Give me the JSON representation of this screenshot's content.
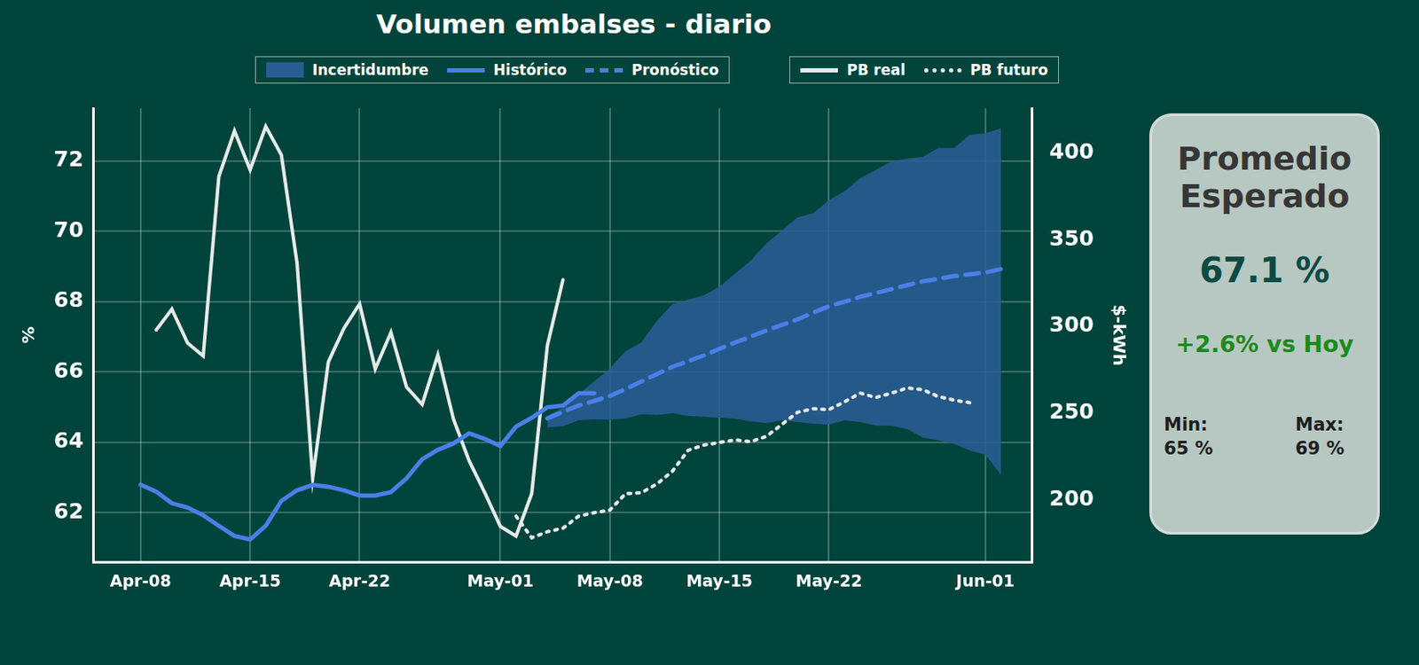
{
  "chart_data": {
    "type": "line",
    "title": "Volumen embalses - diario",
    "categories": [
      null,
      null,
      null,
      "Apr-08",
      null,
      null,
      null,
      null,
      null,
      null,
      "Apr-15",
      null,
      null,
      null,
      null,
      null,
      null,
      "Apr-22",
      null,
      null,
      null,
      null,
      null,
      null,
      null,
      null,
      "May-01",
      null,
      null,
      null,
      null,
      null,
      null,
      "May-08",
      null,
      null,
      null,
      null,
      null,
      null,
      "May-15",
      null,
      null,
      null,
      null,
      null,
      null,
      "May-22",
      null,
      null,
      null,
      null,
      null,
      null,
      null,
      null,
      null,
      "Jun-01",
      null,
      null,
      null
    ],
    "y_label": "%",
    "y2_label": "$-kWh",
    "ylim": [
      60.6,
      73.5
    ],
    "yticks": [
      62,
      64,
      66,
      68,
      70,
      72
    ],
    "y2lim": [
      164,
      426
    ],
    "y2ticks": [
      200,
      250,
      300,
      350,
      400
    ],
    "grid": true,
    "legend": "top",
    "series": [
      {
        "name": "Incertidumbre",
        "type": "band",
        "color": "#2a5c94",
        "axis": "y",
        "lower": [
          null,
          null,
          null,
          null,
          null,
          null,
          null,
          null,
          null,
          null,
          null,
          null,
          null,
          null,
          null,
          null,
          null,
          null,
          null,
          null,
          null,
          null,
          null,
          null,
          null,
          null,
          null,
          null,
          null,
          64.43,
          64.46,
          64.63,
          64.65,
          64.65,
          64.68,
          64.8,
          64.78,
          64.83,
          64.75,
          64.73,
          64.7,
          64.68,
          64.6,
          64.55,
          64.63,
          64.58,
          64.53,
          64.51,
          64.63,
          64.58,
          64.48,
          64.48,
          64.38,
          64.14,
          64.06,
          63.96,
          63.77,
          63.65,
          63.08,
          null,
          null
        ],
        "upper": [
          null,
          null,
          null,
          null,
          null,
          null,
          null,
          null,
          null,
          null,
          null,
          null,
          null,
          null,
          null,
          null,
          null,
          null,
          null,
          null,
          null,
          null,
          null,
          null,
          null,
          null,
          null,
          null,
          null,
          64.75,
          65.0,
          65.37,
          65.74,
          66.1,
          66.59,
          66.84,
          67.45,
          67.94,
          68.06,
          68.18,
          68.43,
          68.8,
          69.17,
          69.66,
          70.03,
          70.4,
          70.52,
          70.89,
          71.14,
          71.51,
          71.75,
          72.0,
          72.07,
          72.12,
          72.37,
          72.37,
          72.74,
          72.79,
          72.93,
          null,
          null
        ]
      },
      {
        "name": "Histórico",
        "color": "#4a7fe8",
        "line_style": "solid",
        "axis": "y",
        "values": [
          null,
          null,
          null,
          62.8,
          62.6,
          62.27,
          62.15,
          61.93,
          61.63,
          61.34,
          61.24,
          61.63,
          62.34,
          62.64,
          62.79,
          62.74,
          62.64,
          62.49,
          62.49,
          62.59,
          62.98,
          63.52,
          63.79,
          63.97,
          64.26,
          64.1,
          63.9,
          64.45,
          64.7,
          65.0,
          65.05,
          65.4,
          65.4,
          null,
          null,
          null,
          null,
          null,
          null,
          null,
          null,
          null,
          null,
          null,
          null,
          null,
          null,
          null,
          null,
          null,
          null,
          null,
          null,
          null,
          null,
          null,
          null,
          null,
          null,
          null,
          null
        ]
      },
      {
        "name": "Pronóstico",
        "color": "#4a7fe8",
        "line_style": "dashed",
        "axis": "y",
        "values": [
          null,
          null,
          null,
          null,
          null,
          null,
          null,
          null,
          null,
          null,
          null,
          null,
          null,
          null,
          null,
          null,
          null,
          null,
          null,
          null,
          null,
          null,
          null,
          null,
          null,
          null,
          null,
          null,
          null,
          64.68,
          64.87,
          65.05,
          65.18,
          65.32,
          65.52,
          65.73,
          65.94,
          66.15,
          66.31,
          66.47,
          66.66,
          66.84,
          67.01,
          67.18,
          67.34,
          67.5,
          67.69,
          67.87,
          68.0,
          68.14,
          68.25,
          68.36,
          68.47,
          68.58,
          68.65,
          68.73,
          68.78,
          68.83,
          68.93,
          null,
          null
        ]
      },
      {
        "name": "PB real",
        "color": "#e6ebe9",
        "line_style": "solid",
        "axis": "y2",
        "values": [
          null,
          null,
          null,
          null,
          298,
          310,
          290.5,
          283,
          386.5,
          413,
          390.5,
          415.5,
          399,
          336.5,
          212.5,
          279.5,
          299,
          313,
          275.5,
          296.5,
          265,
          255,
          283.5,
          246.5,
          222.5,
          204,
          184.5,
          179,
          203.5,
          289,
          327,
          null,
          null,
          null,
          null,
          null,
          null,
          null,
          null,
          null,
          null,
          null,
          null,
          null,
          null,
          null,
          null,
          null,
          null,
          null,
          null,
          null,
          null,
          null,
          null,
          null,
          null,
          null,
          null,
          null,
          null
        ]
      },
      {
        "name": "PB futuro",
        "color": "#e6ebe9",
        "line_style": "dotted",
        "axis": "y2",
        "values": [
          null,
          null,
          null,
          null,
          null,
          null,
          null,
          null,
          null,
          null,
          null,
          null,
          null,
          null,
          null,
          null,
          null,
          null,
          null,
          null,
          null,
          null,
          null,
          null,
          null,
          null,
          null,
          190.5,
          178,
          181.5,
          183.5,
          190.5,
          192.5,
          194,
          203.5,
          204,
          209,
          216.5,
          228.5,
          231.5,
          233,
          234.5,
          233.5,
          236.5,
          243.5,
          250.5,
          252.5,
          252,
          256.5,
          261.5,
          259,
          261.5,
          264.5,
          263.5,
          259.5,
          257.5,
          256,
          null,
          null,
          null,
          null
        ]
      }
    ]
  },
  "panel": {
    "title": "Promedio Esperado",
    "value": "67.1 %",
    "change": "+2.6% vs Hoy",
    "min_label": "Min:",
    "min": "65 %",
    "max_label": "Max:",
    "max": "69 %"
  }
}
